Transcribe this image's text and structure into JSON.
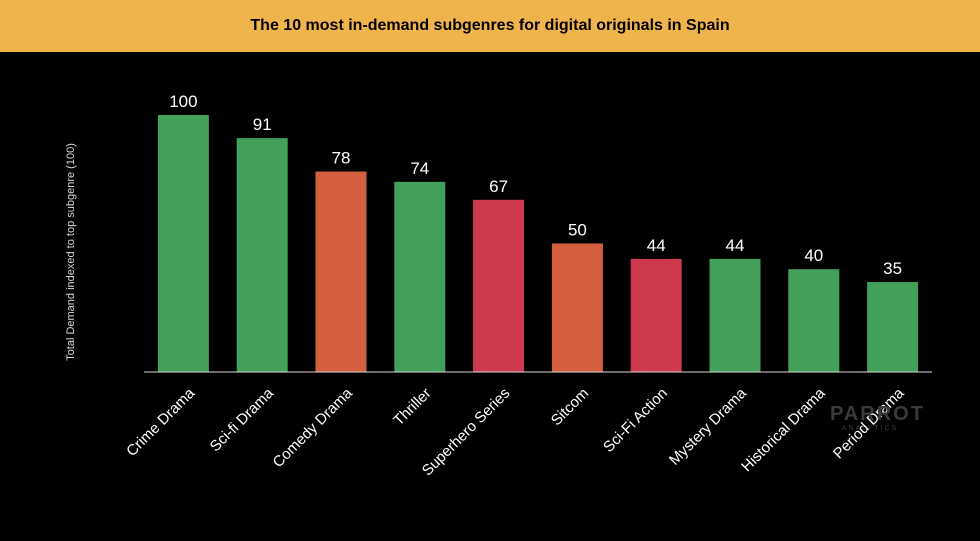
{
  "header": {
    "title": "The 10 most in-demand subgenres for digital originals in Spain"
  },
  "watermark": {
    "main": "PARROT",
    "sub": "ANALYTICS"
  },
  "colors": {
    "title_bar": "#f0b44c",
    "background": "#000000",
    "green": "#43a05a",
    "orange": "#d35f3f",
    "red": "#cf394f"
  },
  "chart_data": {
    "type": "bar",
    "title": "The 10 most in-demand subgenres for digital originals in Spain",
    "xlabel": "",
    "ylabel": "Total Demand indexed to top subgenre (100)",
    "ylim": [
      0,
      100
    ],
    "grid": false,
    "categories": [
      "Crime Drama",
      "Sci-fi Drama",
      "Comedy Drama",
      "Thriller",
      "Superhero Series",
      "Sitcom",
      "Sci-Fi Action",
      "Mystery Drama",
      "Historical Drama",
      "Period Drama"
    ],
    "values": [
      100,
      91,
      78,
      74,
      67,
      50,
      44,
      44,
      40,
      35
    ],
    "bar_colors": [
      "#43a05a",
      "#43a05a",
      "#d35f3f",
      "#43a05a",
      "#cf394f",
      "#d35f3f",
      "#cf394f",
      "#43a05a",
      "#43a05a",
      "#43a05a"
    ]
  }
}
